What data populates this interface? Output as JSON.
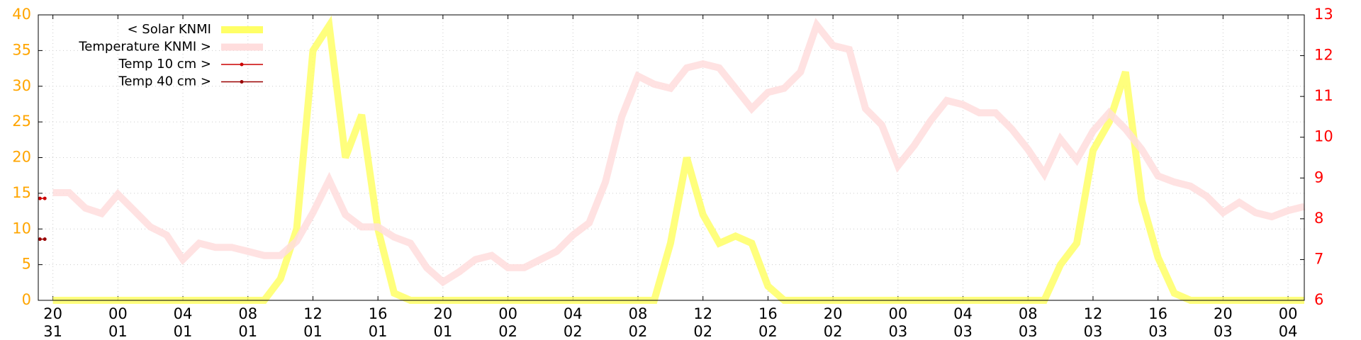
{
  "chart_data": {
    "type": "line",
    "x": [
      0,
      1,
      2,
      3,
      4,
      5,
      6,
      7,
      8,
      9,
      10,
      11,
      12,
      13,
      14,
      15,
      16,
      17,
      18,
      19,
      20,
      21,
      22,
      23,
      24,
      25,
      26,
      27,
      28,
      29,
      30,
      31,
      32,
      33,
      34,
      35,
      36,
      37,
      38,
      39,
      40,
      41,
      42,
      43,
      44,
      45,
      46,
      47,
      48,
      49,
      50,
      51,
      52,
      53,
      54,
      55,
      56,
      57,
      58,
      59,
      60,
      61,
      62,
      63,
      64,
      65,
      66,
      67,
      68,
      69,
      70,
      71,
      72,
      73,
      74,
      75,
      76,
      77
    ],
    "xlim": [
      -0.9,
      77
    ],
    "xticks": [
      {
        "value": 0,
        "label": "20\n31"
      },
      {
        "value": 4,
        "label": "00\n01"
      },
      {
        "value": 8,
        "label": "04\n01"
      },
      {
        "value": 12,
        "label": "08\n01"
      },
      {
        "value": 16,
        "label": "12\n01"
      },
      {
        "value": 20,
        "label": "16\n01"
      },
      {
        "value": 24,
        "label": "20\n01"
      },
      {
        "value": 28,
        "label": "00\n02"
      },
      {
        "value": 32,
        "label": "04\n02"
      },
      {
        "value": 36,
        "label": "08\n02"
      },
      {
        "value": 40,
        "label": "12\n02"
      },
      {
        "value": 44,
        "label": "16\n02"
      },
      {
        "value": 48,
        "label": "20\n02"
      },
      {
        "value": 52,
        "label": "00\n03"
      },
      {
        "value": 56,
        "label": "04\n03"
      },
      {
        "value": 60,
        "label": "08\n03"
      },
      {
        "value": 64,
        "label": "12\n03"
      },
      {
        "value": 68,
        "label": "16\n03"
      },
      {
        "value": 72,
        "label": "20\n03"
      },
      {
        "value": 76,
        "label": "00\n04"
      }
    ],
    "ylim": [
      0,
      40
    ],
    "yticks": [
      0,
      5,
      10,
      15,
      20,
      25,
      30,
      35,
      40
    ],
    "ycolor": "#ffa500",
    "y2lim": [
      6,
      13
    ],
    "y2ticks": [
      6,
      7,
      8,
      9,
      10,
      11,
      12,
      13
    ],
    "y2color": "#ff0000",
    "grid": true,
    "series": [
      {
        "name": "< Solar KNMI",
        "color": "#ffff66",
        "width": 10,
        "values": [
          0,
          0,
          0,
          0,
          0,
          0,
          0,
          0,
          0,
          0,
          0,
          0,
          0,
          0,
          3,
          10,
          35,
          38.5,
          20,
          26,
          10,
          1,
          0,
          0,
          0,
          0,
          0,
          0,
          0,
          0,
          0,
          0,
          0,
          0,
          0,
          0,
          0,
          0,
          8,
          20,
          12,
          8,
          9,
          8,
          2,
          0,
          0,
          0,
          0,
          0,
          0,
          0,
          0,
          0,
          0,
          0,
          0,
          0,
          0,
          0,
          0,
          0,
          5,
          8,
          21,
          25,
          32,
          14,
          6,
          1,
          0,
          0,
          0,
          0,
          0,
          0,
          0,
          0
        ]
      },
      {
        "name": "Temperature KNMI >",
        "color": "#ffdddd",
        "width": 10,
        "axis": "y2",
        "values": [
          8.64,
          8.64,
          8.26,
          8.13,
          8.6,
          8.2,
          7.8,
          7.6,
          7.0,
          7.4,
          7.3,
          7.3,
          7.2,
          7.1,
          7.1,
          7.45,
          8.15,
          8.95,
          8.1,
          7.8,
          7.8,
          7.55,
          7.4,
          6.8,
          6.45,
          6.7,
          7.0,
          7.1,
          6.8,
          6.8,
          7.0,
          7.2,
          7.6,
          7.9,
          8.9,
          10.5,
          11.5,
          11.3,
          11.2,
          11.7,
          11.8,
          11.7,
          11.2,
          10.7,
          11.1,
          11.2,
          11.6,
          12.75,
          12.25,
          12.15,
          10.7,
          10.3,
          9.3,
          9.8,
          10.4,
          10.9,
          10.8,
          10.6,
          10.6,
          10.2,
          9.7,
          9.1,
          9.95,
          9.45,
          10.15,
          10.6,
          10.2,
          9.7,
          9.05,
          8.9,
          8.8,
          8.55,
          8.15,
          8.4,
          8.15,
          8.05,
          8.2,
          8.3
        ]
      },
      {
        "name": "Temp 10 cm >",
        "color": "#cc0000",
        "width": 1.5,
        "axis": "y2",
        "x": [
          -0.8,
          -0.5
        ],
        "values": [
          8.5,
          8.5
        ]
      },
      {
        "name": "Temp 40 cm >",
        "color": "#990000",
        "width": 1.5,
        "axis": "y2",
        "x": [
          -0.8,
          -0.5
        ],
        "values": [
          7.5,
          7.5
        ]
      }
    ]
  }
}
